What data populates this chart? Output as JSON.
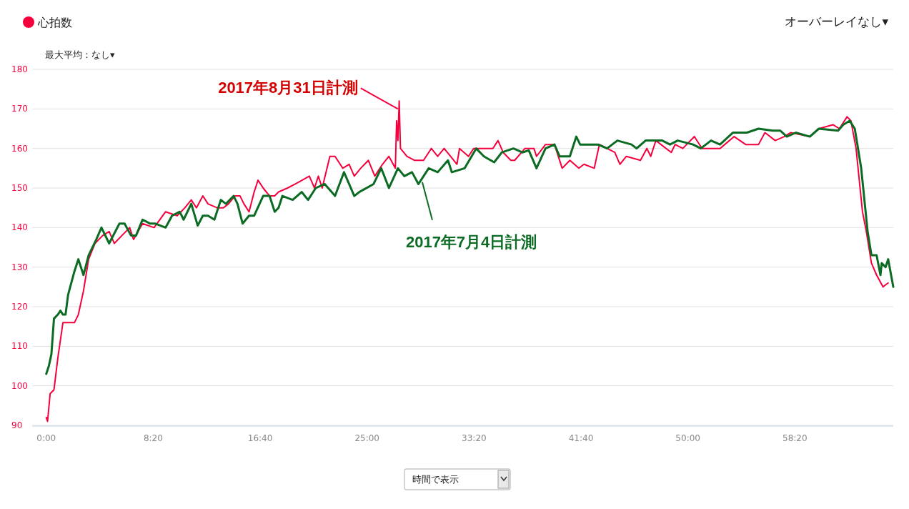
{
  "chart_data": {
    "type": "line",
    "ylim": [
      90,
      180
    ],
    "yticks": [
      90,
      100,
      110,
      120,
      130,
      140,
      150,
      160,
      170,
      180
    ],
    "xlim": [
      -1.1,
      66
    ],
    "xticks": [
      {
        "value": 0,
        "label": "0:00"
      },
      {
        "value": 8.3333,
        "label": "8:20"
      },
      {
        "value": 16.6667,
        "label": "16:40"
      },
      {
        "value": 25,
        "label": "25:00"
      },
      {
        "value": 33.3333,
        "label": "33:20"
      },
      {
        "value": 41.6667,
        "label": "41:40"
      },
      {
        "value": 50,
        "label": "50:00"
      },
      {
        "value": 58.3333,
        "label": "58:20"
      }
    ],
    "grid": "y",
    "legend": "top left",
    "marker": "none",
    "line_style": "solid",
    "series": [
      {
        "name": "心拍数",
        "color": "#f5003c",
        "x": [
          0,
          0.1,
          0.3,
          0.6,
          0.9,
          1.3,
          2.2,
          2.5,
          2.9,
          3.3,
          3.8,
          4.4,
          4.9,
          5.3,
          5.9,
          6.5,
          6.8,
          7.5,
          8.4,
          9.3,
          10.2,
          10.8,
          11.3,
          11.7,
          12.2,
          12.6,
          13.3,
          13.8,
          14.2,
          14.7,
          15.1,
          15.4,
          15.8,
          16.2,
          16.5,
          16.9,
          17.4,
          17.8,
          18.1,
          18.8,
          19.4,
          20.5,
          20.9,
          21.2,
          21.5,
          22.1,
          22.5,
          23.1,
          23.6,
          24.0,
          24.5,
          25.1,
          25.6,
          26.2,
          26.7,
          27.2,
          27.3,
          27.4,
          27.5,
          27.6,
          28.1,
          28.7,
          29.4,
          30.0,
          30.5,
          31.0,
          31.5,
          32.0,
          32.2,
          32.9,
          33.3,
          34.1,
          34.8,
          35.2,
          35.6,
          36.2,
          36.5,
          37.3,
          38.0,
          38.2,
          38.9,
          39.6,
          40.2,
          40.8,
          41.5,
          41.9,
          42.7,
          43.1,
          44.3,
          44.7,
          45.2,
          46.3,
          46.8,
          47.1,
          47.5,
          48.7,
          49.0,
          49.6,
          50.5,
          51.1,
          52.5,
          53.6,
          54.5,
          55.5,
          56.0,
          56.8,
          57.5,
          58.0,
          59.5,
          60.2,
          61.3,
          61.8,
          62.4,
          62.7,
          63.1,
          63.6,
          63.9,
          64.3,
          64.7,
          65.2,
          65.6
        ],
        "values": [
          92,
          91,
          98,
          99,
          107,
          116,
          116,
          118,
          124,
          132,
          136,
          138,
          139,
          136,
          138,
          140,
          137,
          141,
          140,
          144,
          143,
          145,
          147,
          145,
          148,
          146,
          145,
          145,
          146,
          148,
          148,
          146,
          144,
          149,
          152,
          150,
          148,
          148,
          149,
          150,
          151,
          153,
          150,
          153,
          150,
          158,
          158,
          155,
          156,
          153,
          155,
          157,
          153,
          156,
          158,
          155,
          167,
          162,
          172,
          160,
          158,
          157,
          157,
          160,
          158,
          160,
          158,
          156,
          160,
          158,
          160,
          160,
          160,
          162,
          159,
          157,
          157,
          160,
          160,
          158,
          161,
          161,
          155,
          157,
          155,
          156,
          155,
          161,
          159,
          156,
          158,
          157,
          160,
          158,
          162,
          159,
          161,
          160,
          163,
          160,
          160,
          163,
          161,
          161,
          164,
          162,
          163,
          164,
          163,
          165,
          166,
          165,
          168,
          167,
          160,
          144,
          139,
          131,
          128,
          125,
          126
        ]
      },
      {
        "color": "#0b6b23",
        "x": [
          0,
          0.2,
          0.4,
          0.6,
          0.9,
          1.1,
          1.3,
          1.5,
          1.7,
          2.2,
          2.5,
          2.9,
          3.3,
          3.9,
          4.3,
          4.9,
          5.7,
          6.1,
          6.6,
          7.0,
          7.5,
          8.1,
          8.5,
          9.3,
          9.8,
          10.4,
          10.7,
          11.3,
          11.8,
          12.2,
          12.6,
          13.1,
          13.6,
          14.0,
          14.6,
          14.9,
          15.3,
          15.8,
          16.2,
          16.9,
          17.4,
          17.8,
          18.1,
          18.4,
          19.2,
          19.9,
          20.4,
          21.0,
          21.7,
          22.5,
          23.2,
          24.0,
          24.4,
          25.5,
          26.1,
          26.7,
          27.4,
          27.9,
          28.5,
          29.0,
          29.8,
          30.5,
          31.3,
          31.6,
          32.6,
          33.5,
          34.1,
          34.9,
          35.5,
          36.4,
          37.1,
          37.6,
          38.2,
          38.9,
          39.6,
          40.0,
          40.8,
          41.3,
          41.6,
          42.1,
          43.0,
          43.7,
          44.5,
          45.6,
          46.0,
          46.7,
          48.0,
          48.6,
          49.2,
          50.4,
          51.0,
          51.8,
          52.5,
          53.5,
          54.6,
          55.5,
          56.6,
          57.2,
          57.7,
          58.4,
          59.5,
          60.2,
          61.7,
          62.1,
          62.6,
          63.0,
          63.5,
          64.0,
          64.3,
          64.7,
          65.0,
          65.1,
          65.4,
          65.6,
          66.0
        ],
        "values": [
          103,
          105,
          108,
          117,
          118,
          119,
          118,
          118,
          123,
          129,
          132,
          128,
          133,
          137,
          140,
          136,
          141,
          141,
          138,
          138,
          142,
          141,
          141,
          140,
          143,
          144,
          142,
          146,
          140.5,
          143,
          143,
          142,
          147,
          146,
          148,
          146,
          141,
          143,
          143,
          148,
          148,
          144,
          145,
          148,
          147,
          149,
          147,
          150,
          151,
          148,
          154,
          148,
          149,
          151,
          155,
          150,
          155,
          153,
          154,
          151,
          155,
          154,
          157,
          154,
          155,
          160,
          158,
          156.5,
          159,
          160,
          159,
          159.5,
          155,
          160,
          161,
          158,
          158,
          163,
          161,
          161,
          161,
          160,
          162,
          161,
          160,
          162,
          162,
          161,
          162,
          161,
          160,
          162,
          161,
          164,
          164,
          165,
          164.5,
          164.5,
          163,
          164,
          163,
          165,
          164.5,
          166,
          167,
          165,
          155,
          139,
          133,
          133,
          128,
          131,
          130,
          132,
          125
        ]
      }
    ],
    "annotations": [
      {
        "text": "2017年8月31日計測",
        "x": 27.4,
        "y": 170
      },
      {
        "text": "2017年7月4日計測",
        "x": 29.3,
        "y": 151.5
      },
      "最大平均：なし▾",
      "オーバーレイなし▾",
      "時間で表示"
    ]
  }
}
